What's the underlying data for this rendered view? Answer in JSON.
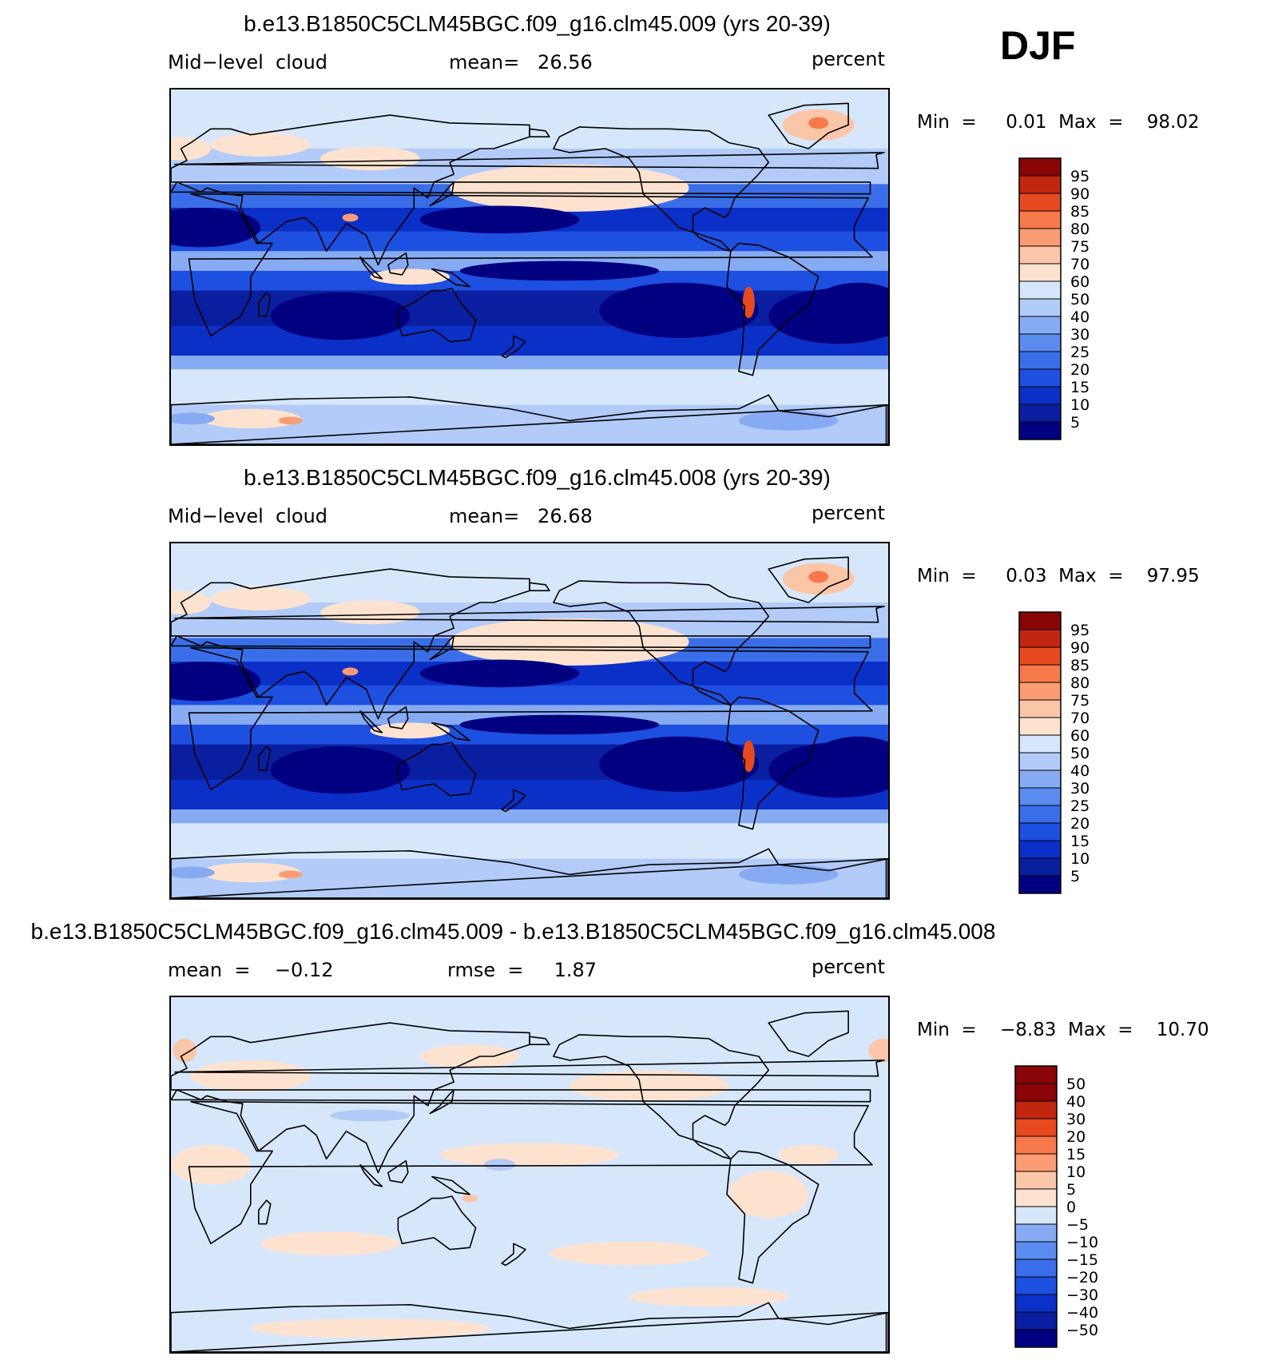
{
  "season": "DJF",
  "panels": [
    {
      "title": "b.e13.B1850C5CLM45BGC.f09_g16.clm45.009 (yrs 20-39)",
      "left_label": "Mid−level  cloud",
      "center_label": "mean=   26.56",
      "right_label": "percent",
      "minmax": "Min  =     0.01  Max  =    98.02",
      "kind": "absolute"
    },
    {
      "title": "b.e13.B1850C5CLM45BGC.f09_g16.clm45.008 (yrs 20-39)",
      "left_label": "Mid−level  cloud",
      "center_label": "mean=   26.68",
      "right_label": "percent",
      "minmax": "Min  =     0.03  Max  =    97.95",
      "kind": "absolute"
    },
    {
      "title": "b.e13.B1850C5CLM45BGC.f09_g16.clm45.009 - b.e13.B1850C5CLM45BGC.f09_g16.clm45.008",
      "left_label": "mean  =    −0.12",
      "center_label": "rmse  =     1.87",
      "right_label": "percent",
      "minmax": "Min  =    −8.83  Max  =    10.70",
      "kind": "difference"
    }
  ],
  "chart_data": [
    {
      "type": "heatmap",
      "title": "b.e13.B1850C5CLM45BGC.f09_g16.clm45.009 (yrs 20-39)",
      "variable": "Mid−level  cloud",
      "units": "percent",
      "mean": 26.56,
      "min": 0.01,
      "max": 98.02,
      "colorbar": {
        "labels": [
          "5",
          "10",
          "15",
          "20",
          "25",
          "30",
          "40",
          "50",
          "60",
          "70",
          "75",
          "80",
          "85",
          "90",
          "95"
        ],
        "colors": [
          "#000080",
          "#0a1fa0",
          "#0b30c8",
          "#1d4fe0",
          "#3a6ee8",
          "#5a8cf0",
          "#86abf2",
          "#b2cbf8",
          "#d6e7fb",
          "#fde3cf",
          "#fbc6a8",
          "#fb9c74",
          "#f7784b",
          "#e84a1f",
          "#c02610",
          "#8a0505"
        ]
      }
    },
    {
      "type": "heatmap",
      "title": "b.e13.B1850C5CLM45BGC.f09_g16.clm45.008 (yrs 20-39)",
      "variable": "Mid−level  cloud",
      "units": "percent",
      "mean": 26.68,
      "min": 0.03,
      "max": 97.95,
      "colorbar": {
        "labels": [
          "5",
          "10",
          "15",
          "20",
          "25",
          "30",
          "40",
          "50",
          "60",
          "70",
          "75",
          "80",
          "85",
          "90",
          "95"
        ],
        "colors": [
          "#000080",
          "#0a1fa0",
          "#0b30c8",
          "#1d4fe0",
          "#3a6ee8",
          "#5a8cf0",
          "#86abf2",
          "#b2cbf8",
          "#d6e7fb",
          "#fde3cf",
          "#fbc6a8",
          "#fb9c74",
          "#f7784b",
          "#e84a1f",
          "#c02610",
          "#8a0505"
        ]
      }
    },
    {
      "type": "heatmap",
      "title": "b.e13.B1850C5CLM45BGC.f09_g16.clm45.009 - b.e13.B1850C5CLM45BGC.f09_g16.clm45.008",
      "units": "percent",
      "mean": -0.12,
      "rmse": 1.87,
      "min": -8.83,
      "max": 10.7,
      "colorbar": {
        "labels": [
          "−50",
          "−40",
          "−30",
          "−20",
          "−15",
          "−10",
          "−5",
          "0",
          "5",
          "10",
          "15",
          "20",
          "30",
          "40",
          "50"
        ],
        "colors": [
          "#000080",
          "#0a1fa0",
          "#0b30c8",
          "#1d4fe0",
          "#3a6ee8",
          "#5a8cf0",
          "#86abf2",
          "#d6e7fb",
          "#fde3cf",
          "#fbc6a8",
          "#fb9c74",
          "#f7784b",
          "#e84a1f",
          "#c02610",
          "#8a0505",
          "#8a0505"
        ]
      }
    }
  ]
}
